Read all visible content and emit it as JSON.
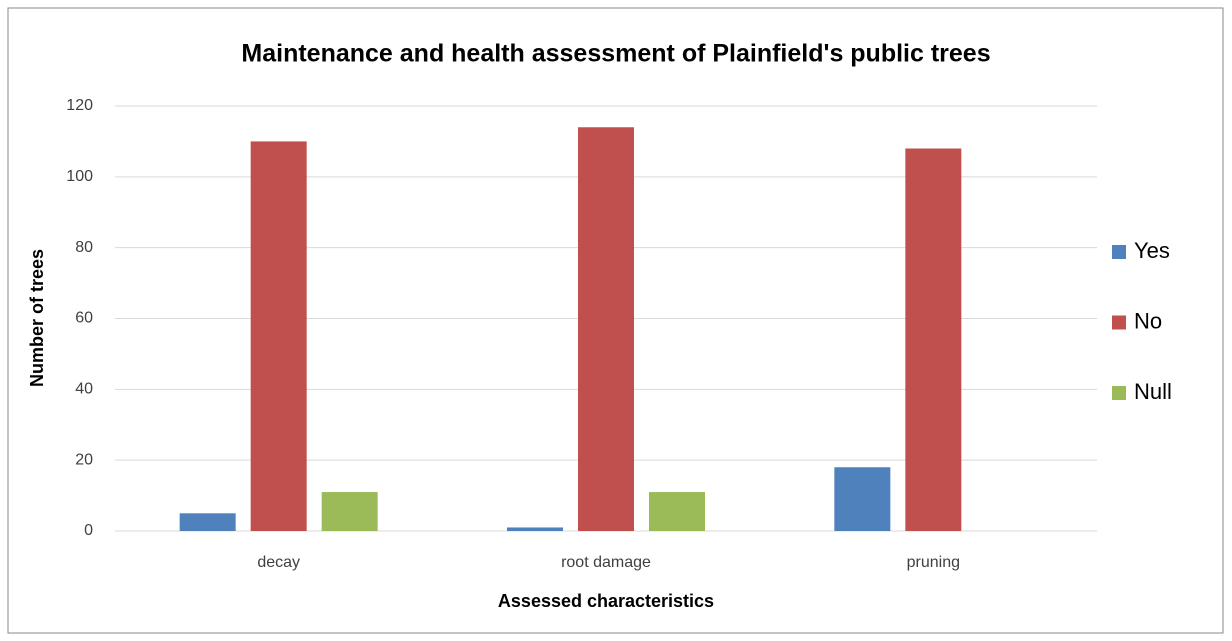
{
  "chart_data": {
    "type": "bar",
    "title": "Maintenance and health assessment of Plainfield's public trees",
    "x_label": "Assessed characteristics",
    "y_label": "Number of trees",
    "categories": [
      "decay",
      "root damage",
      "pruning"
    ],
    "series": [
      {
        "name": "Yes",
        "color": "#4f81bd",
        "values": [
          5,
          1,
          18
        ]
      },
      {
        "name": "No",
        "color": "#c0504d",
        "values": [
          110,
          114,
          108
        ]
      },
      {
        "name": "Null",
        "color": "#9bbb59",
        "values": [
          11,
          11,
          0
        ]
      }
    ],
    "ylim": [
      0,
      120
    ],
    "yticks": [
      0,
      20,
      40,
      60,
      80,
      100,
      120
    ],
    "grid": true,
    "legend": "right"
  }
}
